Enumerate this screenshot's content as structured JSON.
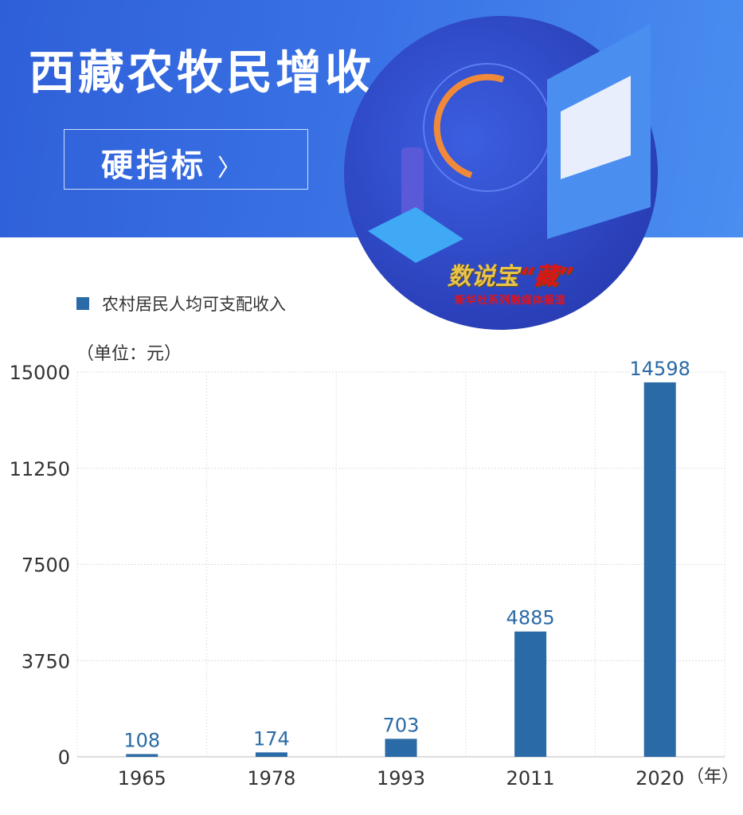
{
  "header": {
    "title": "西藏农牧民增收",
    "button_label": "硬指标",
    "button_chevron": "〉"
  },
  "logo": {
    "main": "数说宝",
    "accent": "“藏”",
    "sub": "新华社系列融媒体报道"
  },
  "chart_data": {
    "type": "bar",
    "legend": "农村居民人均可支配收入",
    "legend_position": "top-left",
    "unit_label": "（单位：元）",
    "x_unit": "（年）",
    "categories": [
      "1965",
      "1978",
      "1993",
      "2011",
      "2020"
    ],
    "values": [
      108,
      174,
      703,
      4885,
      14598
    ],
    "ylim": [
      0,
      15000
    ],
    "yticks": [
      "0",
      "3750",
      "7500",
      "11250",
      "15000"
    ],
    "grid": true,
    "colors": {
      "bar": "#2a6aa6",
      "label": "#2a6aa6"
    }
  }
}
